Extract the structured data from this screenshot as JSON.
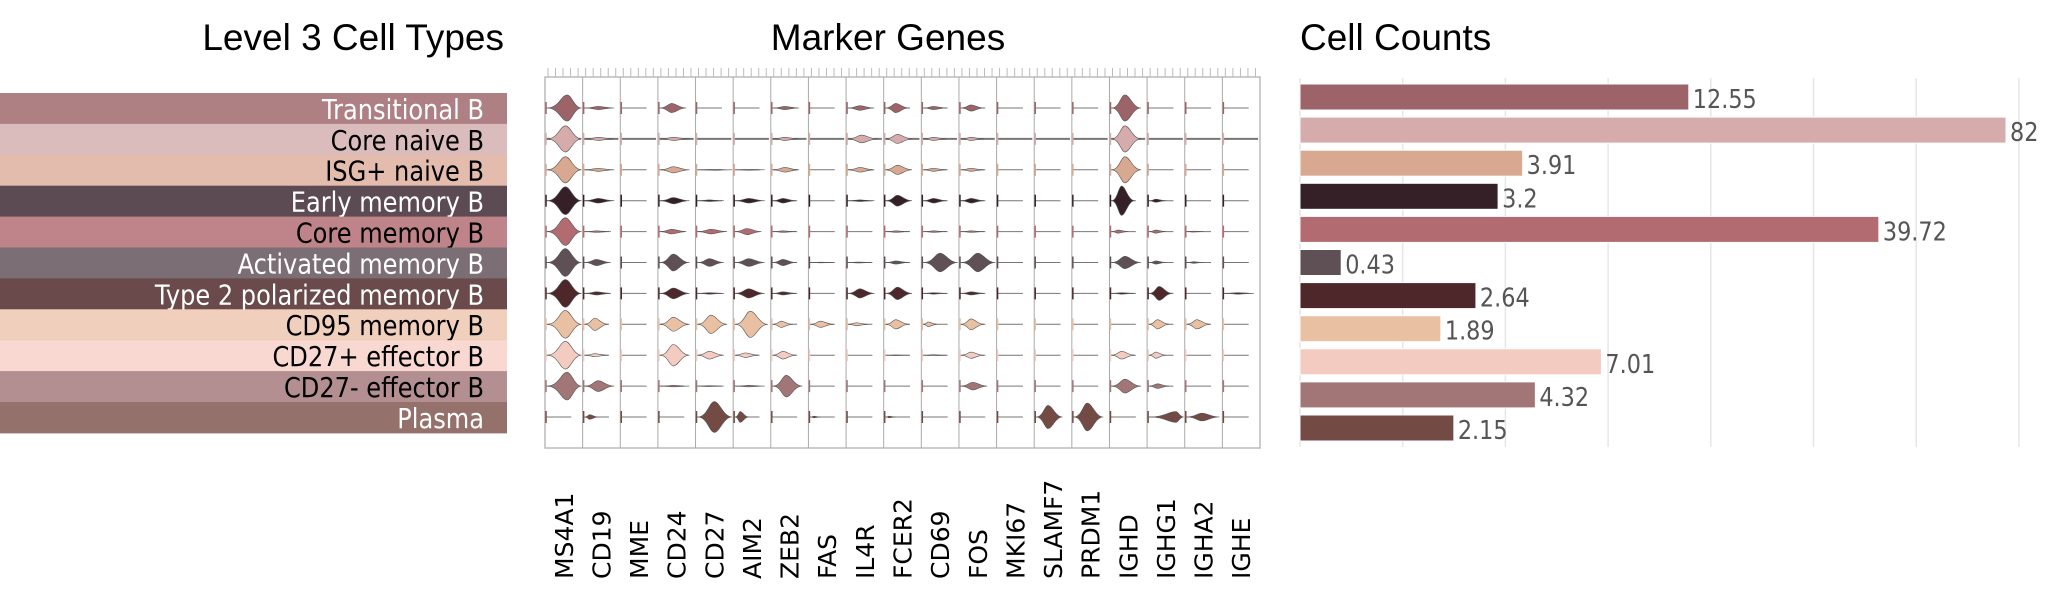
{
  "titles": {
    "cell_types": "Level 3 Cell Types",
    "marker_genes": "Marker Genes",
    "cell_counts": "Cell Counts"
  },
  "chart_data": [
    {
      "type": "table",
      "title": "Level 3 Cell Types",
      "rows": [
        {
          "label": "Transitional B",
          "band": "#ae8084",
          "text": "#ffffff"
        },
        {
          "label": "Core naive B",
          "band": "#dbbcbc",
          "text": "#000000"
        },
        {
          "label": "ISG+ naive B",
          "band": "#e3bcad",
          "text": "#000000"
        },
        {
          "label": "Early memory B",
          "band": "#5c4b53",
          "text": "#ffffff"
        },
        {
          "label": "Core memory B",
          "band": "#bf8489",
          "text": "#000000"
        },
        {
          "label": "Activated memory B",
          "band": "#7b6e75",
          "text": "#ffffff"
        },
        {
          "label": "Type 2 polarized memory B",
          "band": "#6a4a4a",
          "text": "#ffffff"
        },
        {
          "label": "CD95 memory B",
          "band": "#f0cfbd",
          "text": "#000000"
        },
        {
          "label": "CD27+ effector B",
          "band": "#f8d8d0",
          "text": "#000000"
        },
        {
          "label": "CD27- effector B",
          "band": "#b38f92",
          "text": "#000000"
        },
        {
          "label": "Plasma",
          "band": "#94716b",
          "text": "#ffffff"
        }
      ]
    },
    {
      "type": "violin",
      "title": "Marker Genes",
      "genes": [
        "MS4A1",
        "CD19",
        "MME",
        "CD24",
        "CD27",
        "AIM2",
        "ZEB2",
        "FAS",
        "IL4R",
        "FCER2",
        "CD69",
        "FOS",
        "MKI67",
        "SLAMF7",
        "PRDM1",
        "IGHD",
        "IGHG1",
        "IGHA2",
        "IGHE"
      ],
      "value_note": "each cell = [peak expression position 0-1, relative density 0-1]; 0 = none",
      "matrix": [
        [
          [
            0.6,
            0.85
          ],
          [
            0.4,
            0.1
          ],
          0,
          [
            0.35,
            0.3
          ],
          0,
          0,
          [
            0.35,
            0.1
          ],
          0,
          [
            0.35,
            0.15
          ],
          [
            0.3,
            0.3
          ],
          [
            0.3,
            0.1
          ],
          [
            0.3,
            0.2
          ],
          0,
          0,
          0,
          [
            0.4,
            0.85
          ],
          0,
          0,
          0
        ],
        [
          [
            0.55,
            0.85
          ],
          [
            0.4,
            0.1
          ],
          0,
          [
            0.4,
            0.1
          ],
          0,
          0,
          [
            0.35,
            0.1
          ],
          0,
          [
            0.4,
            0.25
          ],
          [
            0.35,
            0.3
          ],
          [
            0.3,
            0.1
          ],
          [
            0.3,
            0.1
          ],
          0,
          0,
          0,
          [
            0.4,
            0.85
          ],
          0,
          0,
          0
        ],
        [
          [
            0.55,
            0.85
          ],
          [
            0.4,
            0.1
          ],
          0,
          [
            0.4,
            0.2
          ],
          [
            0.5,
            0.03
          ],
          [
            0.4,
            0.03
          ],
          [
            0.35,
            0.15
          ],
          0,
          [
            0.35,
            0.15
          ],
          [
            0.35,
            0.3
          ],
          [
            0.3,
            0.1
          ],
          [
            0.3,
            0.1
          ],
          0,
          0,
          0,
          [
            0.4,
            0.85
          ],
          0,
          0,
          0
        ],
        [
          [
            0.55,
            0.9
          ],
          [
            0.4,
            0.15
          ],
          0,
          [
            0.4,
            0.2
          ],
          [
            0.35,
            0.05
          ],
          [
            0.4,
            0.15
          ],
          [
            0.3,
            0.15
          ],
          0,
          [
            0.35,
            0.05
          ],
          [
            0.35,
            0.35
          ],
          [
            0.3,
            0.15
          ],
          [
            0.3,
            0.15
          ],
          0,
          0,
          0,
          [
            0.3,
            0.95
          ],
          [
            0.2,
            0.1
          ],
          0,
          0
        ],
        [
          [
            0.55,
            0.9
          ],
          [
            0.35,
            0.05
          ],
          0,
          [
            0.35,
            0.15
          ],
          [
            0.4,
            0.15
          ],
          [
            0.35,
            0.2
          ],
          [
            0.3,
            0.05
          ],
          0,
          0,
          [
            0.3,
            0.05
          ],
          [
            0.3,
            0.05
          ],
          [
            0.3,
            0.05
          ],
          0,
          0,
          0,
          [
            0.2,
            0.1
          ],
          [
            0.2,
            0.1
          ],
          [
            0.2,
            0.03
          ],
          0
        ],
        [
          [
            0.55,
            0.9
          ],
          [
            0.35,
            0.2
          ],
          0,
          [
            0.4,
            0.55
          ],
          [
            0.35,
            0.25
          ],
          [
            0.4,
            0.25
          ],
          [
            0.3,
            0.2
          ],
          [
            0.3,
            0.02
          ],
          [
            0.3,
            0.03
          ],
          [
            0.3,
            0.1
          ],
          [
            0.5,
            0.6
          ],
          [
            0.5,
            0.6
          ],
          0,
          0,
          0,
          [
            0.4,
            0.4
          ],
          [
            0.2,
            0.1
          ],
          [
            0.2,
            0.05
          ],
          0
        ],
        [
          [
            0.55,
            0.9
          ],
          [
            0.35,
            0.1
          ],
          0,
          [
            0.4,
            0.35
          ],
          [
            0.35,
            0.05
          ],
          [
            0.4,
            0.3
          ],
          [
            0.3,
            0.1
          ],
          0,
          [
            0.35,
            0.3
          ],
          [
            0.35,
            0.4
          ],
          [
            0.3,
            0.05
          ],
          [
            0.3,
            0.1
          ],
          0,
          0,
          0,
          [
            0.3,
            0.05
          ],
          [
            0.3,
            0.45
          ],
          0,
          [
            0.4,
            0.05
          ]
        ],
        [
          [
            0.55,
            0.9
          ],
          [
            0.3,
            0.4
          ],
          0,
          [
            0.4,
            0.45
          ],
          [
            0.4,
            0.6
          ],
          [
            0.45,
            0.85
          ],
          [
            0.25,
            0.2
          ],
          [
            0.3,
            0.2
          ],
          [
            0.25,
            0.1
          ],
          [
            0.3,
            0.3
          ],
          [
            0.15,
            0.15
          ],
          [
            0.3,
            0.35
          ],
          0,
          0,
          0,
          0,
          [
            0.25,
            0.3
          ],
          [
            0.3,
            0.3
          ],
          0
        ],
        [
          [
            0.55,
            0.9
          ],
          [
            0.3,
            0.1
          ],
          0,
          [
            0.4,
            0.7
          ],
          [
            0.35,
            0.25
          ],
          [
            0.3,
            0.15
          ],
          [
            0.3,
            0.25
          ],
          0,
          0,
          [
            0.3,
            0.02
          ],
          [
            0.3,
            0.03
          ],
          [
            0.3,
            0.2
          ],
          0,
          0,
          0,
          [
            0.3,
            0.25
          ],
          [
            0.2,
            0.2
          ],
          0,
          0
        ],
        [
          [
            0.6,
            0.9
          ],
          [
            0.4,
            0.35
          ],
          0,
          [
            0.4,
            0.05
          ],
          [
            0.35,
            0.03
          ],
          [
            0.4,
            0.05
          ],
          [
            0.4,
            0.7
          ],
          0,
          0,
          0,
          0,
          [
            0.35,
            0.25
          ],
          0,
          0,
          0,
          [
            0.4,
            0.45
          ],
          [
            0.25,
            0.15
          ],
          0,
          0
        ],
        [
          0,
          [
            0.15,
            0.15
          ],
          0,
          0,
          [
            0.5,
            1.0
          ],
          [
            0.15,
            0.35
          ],
          0,
          [
            0.1,
            0.05
          ],
          0,
          [
            0.1,
            0.05
          ],
          0,
          0,
          0,
          [
            0.35,
            0.75
          ],
          [
            0.4,
            0.9
          ],
          0,
          [
            0.8,
            0.35
          ],
          [
            0.45,
            0.25
          ],
          0
        ]
      ],
      "colors": [
        "#9c6368",
        "#d5abac",
        "#d8a891",
        "#362028",
        "#b16b71",
        "#5f5055",
        "#4d2729",
        "#eac0a3",
        "#f4cbc0",
        "#a27677",
        "#744a45"
      ]
    },
    {
      "type": "bar",
      "orientation": "horizontal",
      "title": "Cell Counts",
      "categories": [
        "Transitional B",
        "Core naive B",
        "ISG+ naive B",
        "Early memory B",
        "Core memory B",
        "Activated memory B",
        "Type 2 polarized memory B",
        "CD95 memory B",
        "CD27+ effector B",
        "CD27- effector B",
        "Plasma"
      ],
      "values": [
        12.55,
        82,
        3.91,
        3.2,
        39.72,
        0.43,
        2.64,
        1.89,
        7.01,
        4.32,
        2.15
      ],
      "value_labels": [
        "12.55",
        "82",
        "3.91",
        "3.2",
        "39.72",
        "0.43",
        "2.64",
        "1.89",
        "7.01",
        "4.32",
        "2.15"
      ],
      "colors": [
        "#9c6368",
        "#d5abac",
        "#d8a891",
        "#362028",
        "#b16b71",
        "#5f5055",
        "#4d2729",
        "#eac0a3",
        "#f4cbc0",
        "#a27677",
        "#744a45"
      ],
      "scale": "compressed (log-like)",
      "grid": true,
      "xlabel": "",
      "ylabel": ""
    }
  ]
}
